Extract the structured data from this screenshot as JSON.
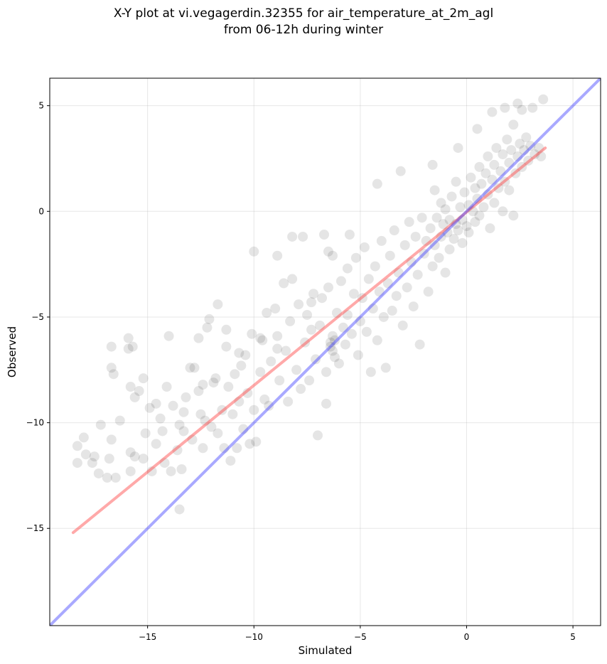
{
  "chart_data": {
    "type": "scatter",
    "title": "X-Y plot at vi.vegagerdin.32355 for air_temperature_at_2m_agl",
    "subtitle": "from 06-12h during winter",
    "xlabel": "Simulated",
    "ylabel": "Observed",
    "xlim": [
      -19.6,
      6.3
    ],
    "ylim": [
      -19.6,
      6.3
    ],
    "xticks": [
      -15,
      -10,
      -5,
      0,
      5
    ],
    "yticks": [
      -15,
      -10,
      -5,
      0,
      5
    ],
    "xtick_labels": [
      "−15",
      "−10",
      "−5",
      "0",
      "5"
    ],
    "ytick_labels": [
      "−15",
      "−10",
      "−5",
      "0",
      "5"
    ],
    "grid": true,
    "point_color": "#000000",
    "point_alpha": 0.1,
    "points": [
      [
        -18.3,
        -11.1
      ],
      [
        -18.3,
        -11.9
      ],
      [
        -18.0,
        -10.7
      ],
      [
        -17.9,
        -11.5
      ],
      [
        -17.6,
        -11.9
      ],
      [
        -17.5,
        -11.6
      ],
      [
        -17.3,
        -12.4
      ],
      [
        -17.2,
        -10.1
      ],
      [
        -16.9,
        -12.6
      ],
      [
        -16.8,
        -11.7
      ],
      [
        -16.7,
        -10.8
      ],
      [
        -16.5,
        -12.6
      ],
      [
        -16.7,
        -6.4
      ],
      [
        -16.7,
        -7.4
      ],
      [
        -16.6,
        -7.7
      ],
      [
        -16.3,
        -9.9
      ],
      [
        -15.9,
        -6.0
      ],
      [
        -15.9,
        -6.5
      ],
      [
        -15.7,
        -6.4
      ],
      [
        -15.8,
        -8.3
      ],
      [
        -15.6,
        -8.8
      ],
      [
        -15.4,
        -8.5
      ],
      [
        -15.2,
        -7.9
      ],
      [
        -15.8,
        -11.4
      ],
      [
        -15.6,
        -11.6
      ],
      [
        -15.8,
        -12.3
      ],
      [
        -15.1,
        -10.5
      ],
      [
        -15.2,
        -11.7
      ],
      [
        -14.9,
        -9.3
      ],
      [
        -14.8,
        -12.3
      ],
      [
        -14.6,
        -9.1
      ],
      [
        -14.4,
        -9.8
      ],
      [
        -14.3,
        -10.4
      ],
      [
        -14.2,
        -11.9
      ],
      [
        -14.1,
        -8.3
      ],
      [
        -14.0,
        -5.9
      ],
      [
        -13.9,
        -12.3
      ],
      [
        -13.8,
        -9.2
      ],
      [
        -13.6,
        -11.3
      ],
      [
        -13.5,
        -10.1
      ],
      [
        -13.4,
        -12.2
      ],
      [
        -13.5,
        -14.1
      ],
      [
        -13.3,
        -9.5
      ],
      [
        -13.2,
        -8.8
      ],
      [
        -13.0,
        -7.4
      ],
      [
        -12.9,
        -10.8
      ],
      [
        -12.8,
        -7.4
      ],
      [
        -12.6,
        -8.5
      ],
      [
        -12.6,
        -6.0
      ],
      [
        -12.5,
        -9.6
      ],
      [
        -12.4,
        -11.2
      ],
      [
        -12.3,
        -9.9
      ],
      [
        -12.2,
        -5.5
      ],
      [
        -12.0,
        -10.2
      ],
      [
        -12.1,
        -5.1
      ],
      [
        -11.9,
        -8.1
      ],
      [
        -11.8,
        -7.9
      ],
      [
        -11.7,
        -4.4
      ],
      [
        -11.7,
        -10.5
      ],
      [
        -11.5,
        -9.4
      ],
      [
        -11.4,
        -11.2
      ],
      [
        -11.3,
        -5.6
      ],
      [
        -11.2,
        -8.3
      ],
      [
        -11.1,
        -11.8
      ],
      [
        -11.0,
        -9.6
      ],
      [
        -10.9,
        -7.7
      ],
      [
        -10.8,
        -11.2
      ],
      [
        -10.7,
        -9.0
      ],
      [
        -10.6,
        -7.3
      ],
      [
        -10.5,
        -10.3
      ],
      [
        -10.4,
        -6.8
      ],
      [
        -10.3,
        -8.6
      ],
      [
        -10.2,
        -11.0
      ],
      [
        -10.1,
        -5.8
      ],
      [
        -10.0,
        -9.4
      ],
      [
        -10.0,
        -1.9
      ],
      [
        -9.9,
        -10.9
      ],
      [
        -9.7,
        -7.6
      ],
      [
        -9.6,
        -6.1
      ],
      [
        -9.5,
        -8.9
      ],
      [
        -9.4,
        -4.8
      ],
      [
        -9.3,
        -9.2
      ],
      [
        -9.2,
        -7.1
      ],
      [
        -9.0,
        -4.6
      ],
      [
        -8.9,
        -5.9
      ],
      [
        -8.9,
        -2.1
      ],
      [
        -8.8,
        -8.0
      ],
      [
        -8.6,
        -3.4
      ],
      [
        -8.5,
        -6.6
      ],
      [
        -8.4,
        -9.0
      ],
      [
        -8.3,
        -5.2
      ],
      [
        -8.2,
        -3.2
      ],
      [
        -8.2,
        -1.2
      ],
      [
        -8.0,
        -7.5
      ],
      [
        -7.9,
        -4.4
      ],
      [
        -7.8,
        -8.4
      ],
      [
        -7.7,
        -1.2
      ],
      [
        -7.6,
        -6.2
      ],
      [
        -7.5,
        -4.9
      ],
      [
        -7.4,
        -8.0
      ],
      [
        -7.3,
        -5.6
      ],
      [
        -7.2,
        -3.9
      ],
      [
        -7.1,
        -7.0
      ],
      [
        -7.0,
        -10.6
      ],
      [
        -6.9,
        -5.4
      ],
      [
        -6.8,
        -4.1
      ],
      [
        -6.7,
        -1.1
      ],
      [
        -6.6,
        -7.6
      ],
      [
        -6.6,
        -9.1
      ],
      [
        -6.5,
        -3.6
      ],
      [
        -6.4,
        -6.4
      ],
      [
        -6.4,
        -6.2
      ],
      [
        -6.3,
        -6.6
      ],
      [
        -6.3,
        -5.9
      ],
      [
        -6.2,
        -6.9
      ],
      [
        -6.2,
        -6.1
      ],
      [
        -6.1,
        -4.8
      ],
      [
        -6.0,
        -7.2
      ],
      [
        -5.9,
        -3.3
      ],
      [
        -5.8,
        -5.5
      ],
      [
        -5.7,
        -6.3
      ],
      [
        -5.6,
        -4.9
      ],
      [
        -5.5,
        -1.1
      ],
      [
        -5.4,
        -5.8
      ],
      [
        -5.3,
        -3.9
      ],
      [
        -5.2,
        -2.2
      ],
      [
        -5.1,
        -6.8
      ],
      [
        -5.0,
        -5.2
      ],
      [
        -4.9,
        -4.1
      ],
      [
        -4.8,
        -1.7
      ],
      [
        -4.7,
        -5.7
      ],
      [
        -4.6,
        -3.2
      ],
      [
        -4.5,
        -7.6
      ],
      [
        -4.4,
        -4.6
      ],
      [
        -4.3,
        -2.6
      ],
      [
        -4.2,
        -6.1
      ],
      [
        -4.1,
        -3.8
      ],
      [
        -4.0,
        -1.4
      ],
      [
        -3.9,
        -5.0
      ],
      [
        -3.8,
        -7.4
      ],
      [
        -3.7,
        -3.4
      ],
      [
        -3.6,
        -2.1
      ],
      [
        -3.5,
        -4.7
      ],
      [
        -3.4,
        -0.9
      ],
      [
        -3.3,
        -4.0
      ],
      [
        -3.2,
        -2.9
      ],
      [
        -3.1,
        1.9
      ],
      [
        -3.0,
        -5.4
      ],
      [
        -2.9,
        -1.6
      ],
      [
        -2.8,
        -3.6
      ],
      [
        -2.7,
        -0.5
      ],
      [
        -2.6,
        -2.4
      ],
      [
        -2.5,
        -4.5
      ],
      [
        -2.4,
        -1.2
      ],
      [
        -2.3,
        -3.0
      ],
      [
        -2.2,
        -6.3
      ],
      [
        -2.1,
        -0.3
      ],
      [
        -2.0,
        -2.0
      ],
      [
        -1.9,
        -1.4
      ],
      [
        -1.8,
        -3.8
      ],
      [
        -1.7,
        -0.8
      ],
      [
        -1.6,
        -2.6
      ],
      [
        -1.5,
        -1.6
      ],
      [
        -1.5,
        1.0
      ],
      [
        -1.4,
        -0.3
      ],
      [
        -1.3,
        -2.2
      ],
      [
        -1.2,
        -1.2
      ],
      [
        -1.2,
        0.4
      ],
      [
        -1.1,
        -0.6
      ],
      [
        -1.0,
        -2.9
      ],
      [
        -1.0,
        0.1
      ],
      [
        -0.9,
        -1.0
      ],
      [
        -0.8,
        -1.8
      ],
      [
        -0.8,
        -0.4
      ],
      [
        -0.7,
        0.7
      ],
      [
        -0.6,
        -1.3
      ],
      [
        -0.5,
        -0.6
      ],
      [
        -0.5,
        1.4
      ],
      [
        -0.4,
        -0.9
      ],
      [
        -0.3,
        0.2
      ],
      [
        -0.2,
        -1.5
      ],
      [
        -0.2,
        -0.4
      ],
      [
        -0.1,
        0.9
      ],
      [
        0.0,
        -0.7
      ],
      [
        0.1,
        0.3
      ],
      [
        0.1,
        -1.0
      ],
      [
        0.2,
        1.6
      ],
      [
        0.3,
        0.0
      ],
      [
        0.4,
        -0.5
      ],
      [
        0.4,
        1.1
      ],
      [
        0.5,
        0.6
      ],
      [
        0.6,
        -0.2
      ],
      [
        0.6,
        2.1
      ],
      [
        0.7,
        1.3
      ],
      [
        0.8,
        0.2
      ],
      [
        0.9,
        1.8
      ],
      [
        1.0,
        0.8
      ],
      [
        1.0,
        2.6
      ],
      [
        1.1,
        -0.8
      ],
      [
        1.2,
        1.5
      ],
      [
        1.3,
        0.4
      ],
      [
        1.3,
        2.2
      ],
      [
        1.4,
        3.0
      ],
      [
        1.5,
        1.1
      ],
      [
        1.6,
        1.9
      ],
      [
        1.7,
        0.0
      ],
      [
        1.7,
        2.7
      ],
      [
        1.8,
        1.4
      ],
      [
        1.9,
        3.4
      ],
      [
        2.0,
        2.3
      ],
      [
        2.0,
        1.0
      ],
      [
        2.1,
        2.9
      ],
      [
        2.2,
        -0.2
      ],
      [
        2.2,
        4.1
      ],
      [
        2.3,
        1.8
      ],
      [
        2.4,
        2.6
      ],
      [
        2.5,
        3.2
      ],
      [
        2.6,
        2.1
      ],
      [
        2.6,
        4.8
      ],
      [
        2.7,
        2.9
      ],
      [
        2.8,
        3.5
      ],
      [
        2.9,
        2.4
      ],
      [
        3.0,
        3.1
      ],
      [
        3.1,
        4.9
      ],
      [
        3.2,
        2.7
      ],
      [
        3.4,
        3.0
      ],
      [
        3.6,
        5.3
      ],
      [
        3.5,
        2.6
      ],
      [
        1.2,
        4.7
      ],
      [
        1.8,
        4.9
      ],
      [
        2.4,
        5.1
      ],
      [
        0.5,
        3.9
      ],
      [
        -0.4,
        3.0
      ],
      [
        -1.6,
        2.2
      ],
      [
        -4.2,
        1.3
      ],
      [
        -6.3,
        -2.1
      ],
      [
        -6.5,
        -1.9
      ],
      [
        -5.6,
        -2.7
      ],
      [
        -7.3,
        -4.3
      ],
      [
        -8.9,
        -6.5
      ],
      [
        -9.7,
        -6.0
      ],
      [
        -10.7,
        -6.7
      ],
      [
        -11.3,
        -6.4
      ],
      [
        -12.4,
        -8.2
      ],
      [
        -13.3,
        -10.4
      ],
      [
        -14.6,
        -11.0
      ]
    ],
    "series": [
      {
        "color": "#ff4040",
        "alpha": 0.45,
        "x": [
          -18.5,
          3.7
        ],
        "y": [
          -15.2,
          3.0
        ]
      },
      {
        "color": "#4040ff",
        "alpha": 0.45,
        "x": [
          -19.6,
          6.3
        ],
        "y": [
          -19.6,
          6.3
        ]
      }
    ]
  }
}
